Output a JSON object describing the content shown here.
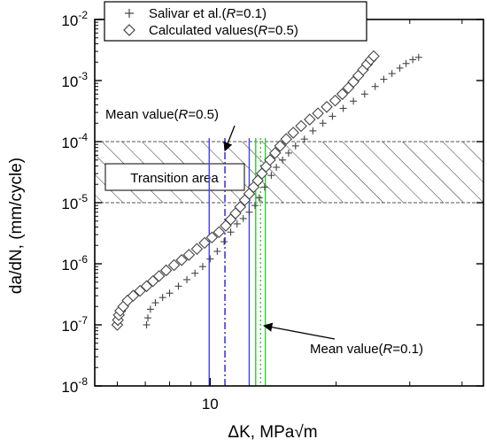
{
  "chart_data": {
    "type": "scatter",
    "title": "",
    "xlabel": "ΔK, MPa√m",
    "ylabel": "da/dN, (mm/cycle)",
    "x_scale": "log",
    "y_scale": "log",
    "xlim": [
      5.3,
      45
    ],
    "ylim": [
      1e-08,
      0.01
    ],
    "x_ticks": [
      {
        "value": 10,
        "label": "10"
      }
    ],
    "y_ticks": [
      {
        "value": 1e-08,
        "base": "10",
        "exp": "-8"
      },
      {
        "value": 1e-07,
        "base": "10",
        "exp": "-7"
      },
      {
        "value": 1e-06,
        "base": "10",
        "exp": "-6"
      },
      {
        "value": 1e-05,
        "base": "10",
        "exp": "-5"
      },
      {
        "value": 0.0001,
        "base": "10",
        "exp": "-4"
      },
      {
        "value": 0.001,
        "base": "10",
        "exp": "-3"
      },
      {
        "value": 0.01,
        "base": "10",
        "exp": "-2"
      }
    ],
    "legend": {
      "placement": "top-left",
      "entries": [
        {
          "marker": "plus",
          "prefix": "Salivar et al.(",
          "italic": "R",
          "suffix": "=0.1)"
        },
        {
          "marker": "diamond",
          "prefix": "Calculated values(",
          "italic": "R",
          "suffix": "=0.5)"
        }
      ]
    },
    "series": [
      {
        "name": "Salivar et al.(R=0.1)",
        "marker": "plus",
        "color": "#444444",
        "points": [
          [
            7.05,
            1e-07
          ],
          [
            7.1,
            1.3e-07
          ],
          [
            7.2,
            1.8e-07
          ],
          [
            7.4,
            2.3e-07
          ],
          [
            7.7,
            2.8e-07
          ],
          [
            8.0,
            3.3e-07
          ],
          [
            8.4,
            4.3e-07
          ],
          [
            8.8,
            5.5e-07
          ],
          [
            9.2,
            7e-07
          ],
          [
            9.6,
            9e-07
          ],
          [
            10.0,
            1.2e-06
          ],
          [
            10.4,
            1.6e-06
          ],
          [
            10.8,
            2.3e-06
          ],
          [
            11.2,
            3.3e-06
          ],
          [
            11.6,
            4.5e-06
          ],
          [
            12.0,
            5.5e-06
          ],
          [
            12.4,
            7e-06
          ],
          [
            12.8,
            9e-06
          ],
          [
            13.1,
            1.2e-05
          ],
          [
            13.5,
            1.8e-05
          ],
          [
            14.0,
            2.8e-05
          ],
          [
            14.4,
            3.8e-05
          ],
          [
            14.9,
            5e-05
          ],
          [
            15.4,
            6.5e-05
          ],
          [
            16.0,
            8.5e-05
          ],
          [
            16.8,
            0.00011
          ],
          [
            17.6,
            0.00015
          ],
          [
            18.6,
            0.0002
          ],
          [
            19.6,
            0.00026
          ],
          [
            20.8,
            0.00035
          ],
          [
            22.0,
            0.00046
          ],
          [
            23.4,
            0.0006
          ],
          [
            24.8,
            0.0008
          ],
          [
            26.0,
            0.00105
          ],
          [
            27.2,
            0.0013
          ],
          [
            28.4,
            0.0016
          ],
          [
            29.4,
            0.0019
          ],
          [
            30.5,
            0.0022
          ],
          [
            31.5,
            0.0024
          ]
        ]
      },
      {
        "name": "Calculated values(R=0.5)",
        "marker": "diamond",
        "color": "#444444",
        "points": [
          [
            6.0,
            1e-07
          ],
          [
            6.02,
            1.2e-07
          ],
          [
            6.05,
            1.45e-07
          ],
          [
            6.1,
            1.7e-07
          ],
          [
            6.2,
            2e-07
          ],
          [
            6.35,
            2.5e-07
          ],
          [
            6.55,
            3e-07
          ],
          [
            6.8,
            3.6e-07
          ],
          [
            7.05,
            4.3e-07
          ],
          [
            7.3,
            5.2e-07
          ],
          [
            7.55,
            6.3e-07
          ],
          [
            7.85,
            7.8e-07
          ],
          [
            8.2,
            9.5e-07
          ],
          [
            8.55,
            1.15e-06
          ],
          [
            8.9,
            1.4e-06
          ],
          [
            9.3,
            1.75e-06
          ],
          [
            9.7,
            2.2e-06
          ],
          [
            10.1,
            2.7e-06
          ],
          [
            10.5,
            3.3e-06
          ],
          [
            10.9,
            4.2e-06
          ],
          [
            11.2,
            5.3e-06
          ],
          [
            11.5,
            6.7e-06
          ],
          [
            11.8,
            8.5e-06
          ],
          [
            12.1,
            1.1e-05
          ],
          [
            12.4,
            1.4e-05
          ],
          [
            12.7,
            1.8e-05
          ],
          [
            13.0,
            2.3e-05
          ],
          [
            13.3,
            3e-05
          ],
          [
            13.6,
            3.9e-05
          ],
          [
            13.9,
            5e-05
          ],
          [
            14.3,
            6.5e-05
          ],
          [
            14.7,
            8.5e-05
          ],
          [
            15.2,
            0.00011
          ],
          [
            15.8,
            0.00014
          ],
          [
            16.5,
            0.00018
          ],
          [
            17.3,
            0.00023
          ],
          [
            18.1,
            0.00029
          ],
          [
            19.0,
            0.00037
          ],
          [
            19.9,
            0.00047
          ],
          [
            20.7,
            0.0006
          ],
          [
            21.4,
            0.00076
          ],
          [
            22.0,
            0.00095
          ],
          [
            22.6,
            0.0012
          ],
          [
            23.2,
            0.0015
          ],
          [
            23.7,
            0.00185
          ],
          [
            24.2,
            0.0022
          ],
          [
            24.6,
            0.0025
          ]
        ]
      }
    ],
    "transition_area": {
      "label": "Transition area",
      "y_from": 1e-05,
      "y_to": 0.0001
    },
    "vertical_lines": [
      {
        "x": 9.95,
        "color": "#4040ff",
        "style": "solid",
        "group": "R=0.5"
      },
      {
        "x": 10.85,
        "color": "#2020dd",
        "style": "dashdot",
        "group": "R=0.5"
      },
      {
        "x": 12.4,
        "color": "#4040ff",
        "style": "solid",
        "group": "R=0.5"
      },
      {
        "x": 12.85,
        "color": "#33cc33",
        "style": "solid",
        "group": "R=0.1"
      },
      {
        "x": 13.2,
        "color": "#33cc33",
        "style": "dotted",
        "group": "R=0.1"
      },
      {
        "x": 13.55,
        "color": "#33cc33",
        "style": "solid",
        "group": "R=0.1"
      }
    ],
    "annotations": [
      {
        "prefix": "Mean value(",
        "italic": "R",
        "suffix": "=0.5)",
        "points_to": 10.85
      },
      {
        "prefix": "Mean value(",
        "italic": "R",
        "suffix": "=0.1)",
        "points_to": 13.2
      }
    ]
  }
}
